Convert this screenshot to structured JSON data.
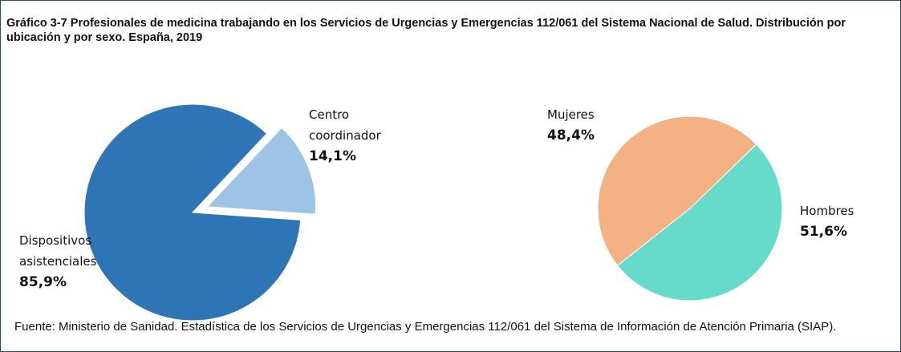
{
  "header": {
    "title": "Gráfico 3-7 Profesionales de medicina trabajando en los Servicios de Urgencias y Emergencias 112/061 del Sistema Nacional de Salud. Distribución por ubicación y por sexo. España, 2019"
  },
  "source": "Fuente: Ministerio de Sanidad. Estadística de los Servicios de Urgencias y Emergencias 112/061 del Sistema de Información de Atención Primaria (SIAP).",
  "chart_data": [
    {
      "type": "pie",
      "categories": [
        "Dispositivos asistenciales",
        "Centro coordinador"
      ],
      "values": [
        85.9,
        14.1
      ],
      "value_labels": [
        "85,9%",
        "14,1%"
      ],
      "colors": [
        "#2e75b6",
        "#9dc3e6"
      ]
    },
    {
      "type": "pie",
      "categories": [
        "Mujeres",
        "Hombres"
      ],
      "values": [
        48.4,
        51.6
      ],
      "value_labels": [
        "48,4%",
        "51,6%"
      ],
      "colors": [
        "#f4b183",
        "#66dbc9"
      ]
    }
  ]
}
